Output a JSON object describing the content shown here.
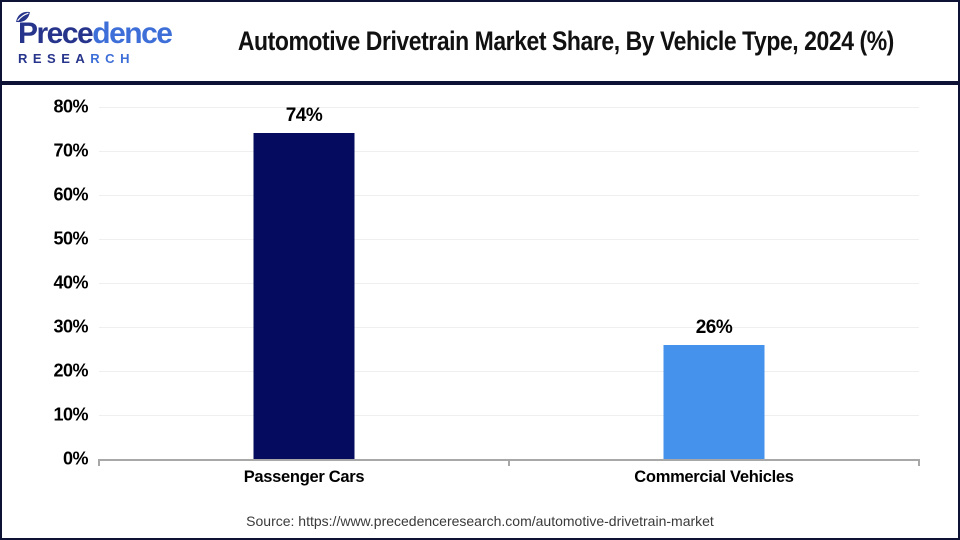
{
  "logo": {
    "name_part1": "Prece",
    "name_part2": "dence",
    "subtitle_part1": "RESEA",
    "subtitle_part2": "RCH"
  },
  "chart_data": {
    "type": "bar",
    "title": "Automotive Drivetrain Market Share, By Vehicle Type, 2024 (%)",
    "categories": [
      "Passenger Cars",
      "Commercial Vehicles"
    ],
    "values": [
      74,
      26
    ],
    "value_labels": [
      "74%",
      "26%"
    ],
    "bar_colors": [
      "#050B5E",
      "#4592EC"
    ],
    "ylim": [
      0,
      80
    ],
    "ytick_step": 10,
    "ytick_labels": [
      "80%",
      "70%",
      "60%",
      "50%",
      "40%",
      "30%",
      "20%",
      "10%",
      "0%"
    ],
    "grid": true,
    "legend": false,
    "source": "Source: https://www.precedenceresearch.com/automotive-drivetrain-market"
  },
  "colors": {
    "frame_border": "#0E1235",
    "divider": "#0E1235",
    "gridline": "#EFEFEF",
    "axis_line": "#A8A8A8",
    "logo_navy": "#27348B",
    "logo_blue": "#3E6FD8",
    "title_text": "#111111",
    "source_text": "#3A3A3A"
  }
}
